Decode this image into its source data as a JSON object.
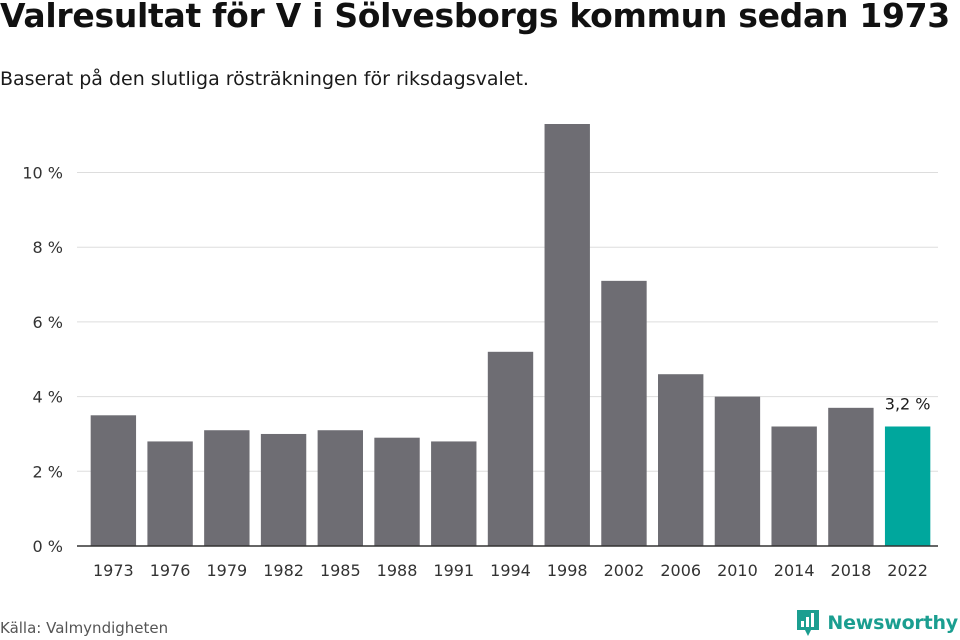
{
  "header": {
    "title": "Valresultat för V i Sölvesborgs kommun sedan 1973",
    "subtitle": "Baserat på den slutliga rösträkningen för riksdagsvalet."
  },
  "footer": {
    "source": "Källa: Valmyndigheten",
    "brand": "Newsworthy",
    "brand_icon": "bar-chart-logo-icon"
  },
  "colors": {
    "bar": "#6e6d73",
    "highlight": "#00a79d",
    "grid": "#dddddd",
    "axis": "#333333",
    "brand": "#1b9e90"
  },
  "chart_data": {
    "type": "bar",
    "categories": [
      "1973",
      "1976",
      "1979",
      "1982",
      "1985",
      "1988",
      "1991",
      "1994",
      "1998",
      "2002",
      "2006",
      "2010",
      "2014",
      "2018",
      "2022"
    ],
    "values": [
      3.5,
      2.8,
      3.1,
      3.0,
      3.1,
      2.9,
      2.8,
      5.2,
      11.3,
      7.1,
      4.6,
      4.0,
      3.2,
      3.7,
      3.2
    ],
    "ylim": [
      0,
      11.3
    ],
    "yticks": [
      0,
      2,
      4,
      6,
      8,
      10
    ],
    "ytick_labels": [
      "0 %",
      "2 %",
      "4 %",
      "6 %",
      "8 %",
      "10 %"
    ],
    "highlight_index": 14,
    "data_labels": [
      {
        "index": 14,
        "text": "3,2 %"
      }
    ],
    "grid": true,
    "legend": "none"
  }
}
